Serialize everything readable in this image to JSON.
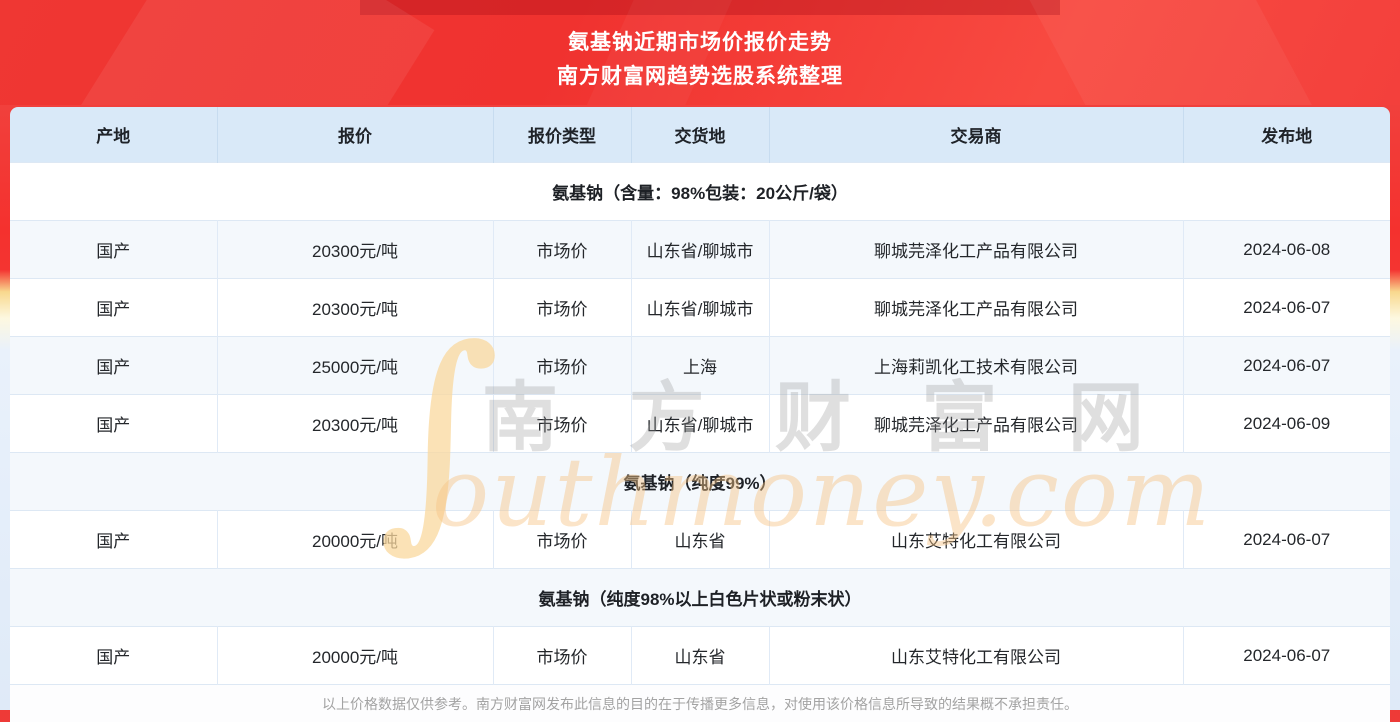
{
  "banner": {
    "title": "氨基钠近期市场价报价走势",
    "subtitle": "南方财富网趋势选股系统整理"
  },
  "table": {
    "columns": [
      "产地",
      "报价",
      "报价类型",
      "交货地",
      "交易商",
      "发布地"
    ],
    "sections": [
      {
        "header": "氨基钠（含量：98%包装：20公斤/袋）",
        "rows": [
          [
            "国产",
            "20300元/吨",
            "市场价",
            "山东省/聊城市",
            "聊城芫泽化工产品有限公司",
            "2024-06-08"
          ],
          [
            "国产",
            "20300元/吨",
            "市场价",
            "山东省/聊城市",
            "聊城芫泽化工产品有限公司",
            "2024-06-07"
          ],
          [
            "国产",
            "25000元/吨",
            "市场价",
            "上海",
            "上海莉凯化工技术有限公司",
            "2024-06-07"
          ],
          [
            "国产",
            "20300元/吨",
            "市场价",
            "山东省/聊城市",
            "聊城芫泽化工产品有限公司",
            "2024-06-09"
          ]
        ]
      },
      {
        "header": "氨基钠（纯度99%）",
        "rows": [
          [
            "国产",
            "20000元/吨",
            "市场价",
            "山东省",
            "山东艾特化工有限公司",
            "2024-06-07"
          ]
        ]
      },
      {
        "header": "氨基钠（纯度98%以上白色片状或粉末状）",
        "rows": [
          [
            "国产",
            "20000元/吨",
            "市场价",
            "山东省",
            "山东艾特化工有限公司",
            "2024-06-07"
          ]
        ]
      }
    ]
  },
  "footer": {
    "disclaimer": "以上价格数据仅供参考。南方财富网发布此信息的目的在于传播更多信息，对使用该价格信息所导致的结果概不承担责任。"
  },
  "watermark": {
    "swoosh": "∫",
    "cn": "南 方 财 富 网",
    "en": "outhmoney.com"
  },
  "colors": {
    "banner_red": "#f0322f",
    "header_blue": "#d9e9f8",
    "stripe_blue": "#f4f8fc",
    "page_blue": "#e4eefa"
  }
}
